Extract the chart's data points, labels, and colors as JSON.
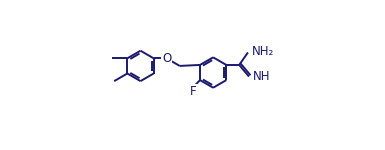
{
  "bond_color": "#1a1a6e",
  "bg_color": "#ffffff",
  "line_width": 1.4,
  "dbo": 0.012,
  "font_size": 8.5,
  "fig_size": [
    3.85,
    1.5
  ],
  "dpi": 100,
  "xlim": [
    0.0,
    1.0
  ],
  "ylim": [
    0.05,
    0.95
  ]
}
